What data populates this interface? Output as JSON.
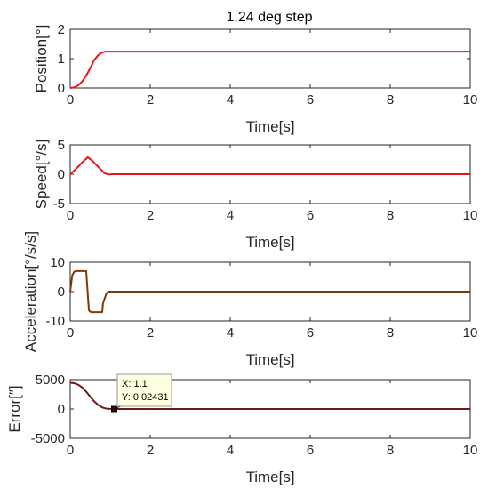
{
  "chart_data": [
    {
      "type": "line",
      "title": "1.24 deg step",
      "xlabel": "Time[s]",
      "ylabel": "Position[°]",
      "xlim": [
        0,
        10
      ],
      "ylim": [
        0,
        2
      ],
      "xticks": [
        "0",
        "2",
        "4",
        "6",
        "8",
        "10"
      ],
      "yticks": [
        "0",
        "1",
        "2"
      ],
      "grid": false,
      "series": [
        {
          "color": "#e8141b",
          "x": [
            0,
            0.1,
            0.2,
            0.3,
            0.4,
            0.5,
            0.6,
            0.7,
            0.8,
            0.85,
            0.9,
            1.0,
            2,
            4,
            6,
            8,
            10
          ],
          "y": [
            0,
            0.02,
            0.09,
            0.22,
            0.42,
            0.68,
            0.95,
            1.12,
            1.21,
            1.23,
            1.24,
            1.24,
            1.24,
            1.24,
            1.24,
            1.24,
            1.24
          ]
        }
      ]
    },
    {
      "type": "line",
      "title": "",
      "xlabel": "Time[s]",
      "ylabel": "Speed[°/s]",
      "xlim": [
        0,
        10
      ],
      "ylim": [
        -5,
        5
      ],
      "xticks": [
        "0",
        "2",
        "4",
        "6",
        "8",
        "10"
      ],
      "yticks": [
        "-5",
        "0",
        "5"
      ],
      "grid": false,
      "series": [
        {
          "color": "#e8141b",
          "x": [
            0,
            0.1,
            0.2,
            0.3,
            0.44,
            0.55,
            0.65,
            0.75,
            0.85,
            0.95,
            1.05,
            2,
            4,
            6,
            8,
            10
          ],
          "y": [
            0,
            0.6,
            1.3,
            2.0,
            2.9,
            2.3,
            1.6,
            0.9,
            0.2,
            -0.05,
            0,
            0,
            0,
            0,
            0,
            0
          ]
        }
      ]
    },
    {
      "type": "line",
      "title": "",
      "xlabel": "Time[s]",
      "ylabel": "Acceleration[°/s/s]",
      "xlim": [
        0,
        10
      ],
      "ylim": [
        -10,
        10
      ],
      "xticks": [
        "0",
        "2",
        "4",
        "6",
        "8",
        "10"
      ],
      "yticks": [
        "-10",
        "0",
        "10"
      ],
      "grid": false,
      "series": [
        {
          "color": "#7a3a0c",
          "x": [
            0,
            0.05,
            0.1,
            0.15,
            0.4,
            0.42,
            0.45,
            0.47,
            0.52,
            0.8,
            0.82,
            0.9,
            0.95,
            1.0,
            2,
            4,
            6,
            8,
            10
          ],
          "y": [
            0,
            5.5,
            6.8,
            7.0,
            7.0,
            3.0,
            -3.0,
            -6.5,
            -7.0,
            -7.0,
            -4.0,
            -0.8,
            0,
            0,
            0,
            0,
            0,
            0,
            0
          ]
        }
      ]
    },
    {
      "type": "line",
      "title": "",
      "xlabel": "Time[s]",
      "ylabel": "Error[″]",
      "xlim": [
        0,
        10
      ],
      "ylim": [
        -5000,
        5000
      ],
      "xticks": [
        "0",
        "2",
        "4",
        "6",
        "8",
        "10"
      ],
      "yticks": [
        "-5000",
        "0",
        "5000"
      ],
      "grid": false,
      "series": [
        {
          "color": "#6b1c10",
          "x": [
            0,
            0.1,
            0.2,
            0.3,
            0.4,
            0.5,
            0.6,
            0.7,
            0.8,
            0.9,
            1.0,
            1.1,
            2,
            4,
            6,
            8,
            10
          ],
          "y": [
            4464,
            4390,
            4140,
            3670,
            2950,
            2100,
            1300,
            680,
            260,
            60,
            10,
            0.02431,
            0,
            0,
            0,
            0,
            0
          ]
        }
      ],
      "datatip": {
        "x": 1.1,
        "y": 0.02431,
        "x_label": "X: 1.1",
        "y_label": "Y: 0.02431"
      }
    }
  ]
}
